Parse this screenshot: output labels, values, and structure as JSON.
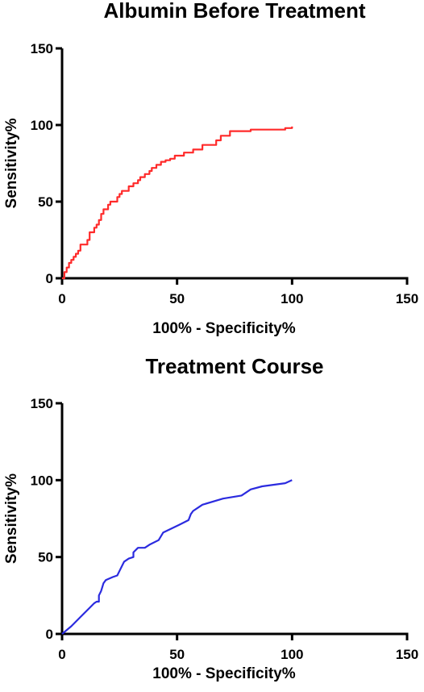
{
  "chart_data": [
    {
      "type": "line",
      "title": "Albumin Before Treatment",
      "xlabel": "100% - Specificity%",
      "ylabel": "Sensitivity%",
      "xlim": [
        0,
        150
      ],
      "ylim": [
        0,
        150
      ],
      "xticks": [
        "0",
        "50",
        "100",
        "150"
      ],
      "yticks": [
        "0",
        "50",
        "100",
        "150"
      ],
      "grid": false,
      "color": "#ff2a2a",
      "x": [
        0,
        1,
        1,
        2,
        2,
        3,
        3,
        4,
        4,
        5,
        5,
        6,
        6,
        7,
        7,
        8,
        8,
        11,
        11,
        12,
        12,
        14,
        14,
        15,
        15,
        16,
        16,
        17,
        17,
        18,
        18,
        20,
        20,
        21,
        21,
        24,
        24,
        25,
        25,
        26,
        26,
        29,
        29,
        31,
        31,
        33,
        33,
        34,
        34,
        36,
        36,
        38,
        38,
        39,
        39,
        41,
        41,
        43,
        43,
        45,
        45,
        47,
        47,
        49,
        49,
        53,
        53,
        57,
        57,
        61,
        61,
        67,
        67,
        69,
        69,
        73,
        73,
        82,
        82,
        97,
        97,
        100,
        100
      ],
      "y": [
        0,
        0,
        4,
        4,
        7,
        7,
        10,
        10,
        12,
        12,
        14,
        14,
        16,
        16,
        18,
        18,
        22,
        22,
        25,
        25,
        30,
        30,
        33,
        33,
        35,
        35,
        38,
        38,
        42,
        42,
        45,
        45,
        48,
        48,
        50,
        50,
        53,
        53,
        55,
        55,
        57,
        57,
        60,
        60,
        62,
        62,
        64,
        64,
        66,
        66,
        68,
        68,
        70,
        70,
        72,
        72,
        74,
        74,
        76,
        76,
        77,
        77,
        78,
        78,
        80,
        80,
        82,
        82,
        84,
        84,
        87,
        87,
        90,
        90,
        93,
        93,
        96,
        96,
        97,
        97,
        98,
        98,
        99
      ]
    },
    {
      "type": "line",
      "title": "Treatment Course",
      "xlabel": "100% - Specificity%",
      "ylabel": "Sensitivity%",
      "xlim": [
        0,
        150
      ],
      "ylim": [
        0,
        150
      ],
      "xticks": [
        "0",
        "50",
        "100",
        "150"
      ],
      "yticks": [
        "0",
        "50",
        "100",
        "150"
      ],
      "grid": false,
      "color": "#2b2bdf",
      "x": [
        0,
        4,
        8,
        12,
        14,
        15,
        16,
        16,
        17,
        18,
        19,
        22,
        24,
        25,
        27,
        29,
        31,
        31,
        33,
        36,
        38,
        42,
        44,
        51,
        55,
        56,
        57,
        59,
        61,
        70,
        74,
        78,
        82,
        87,
        97,
        100
      ],
      "y": [
        0,
        5,
        11,
        17,
        20,
        21,
        21,
        25,
        28,
        33,
        35,
        37,
        38,
        41,
        47,
        49,
        50,
        53,
        56,
        56,
        58,
        61,
        66,
        71,
        74,
        78,
        80,
        82,
        84,
        88,
        89,
        90,
        94,
        96,
        98,
        100
      ]
    }
  ]
}
